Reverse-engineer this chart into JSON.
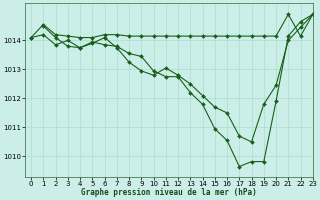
{
  "title": "Graphe pression niveau de la mer (hPa)",
  "background_color": "#cceee8",
  "grid_color": "#aaddcc",
  "line_color": "#1a5e1a",
  "xlim": [
    -0.5,
    23
  ],
  "ylim": [
    1009.3,
    1015.3
  ],
  "yticks": [
    1010,
    1011,
    1012,
    1013,
    1014
  ],
  "xticks": [
    0,
    1,
    2,
    3,
    4,
    5,
    6,
    7,
    8,
    9,
    10,
    11,
    12,
    13,
    14,
    15,
    16,
    17,
    18,
    19,
    20,
    21,
    22,
    23
  ],
  "series": [
    {
      "x": [
        0,
        1,
        2,
        3,
        4,
        5,
        6,
        7,
        8,
        9,
        10,
        11,
        12,
        13,
        14,
        15,
        16,
        17,
        18,
        19,
        20,
        21,
        22,
        23
      ],
      "y": [
        1014.1,
        1014.55,
        1014.2,
        1014.15,
        1014.1,
        1014.1,
        1014.2,
        1014.2,
        1014.15,
        1014.15,
        1014.15,
        1014.15,
        1014.15,
        1014.15,
        1014.15,
        1014.15,
        1014.15,
        1014.15,
        1014.15,
        1014.15,
        1014.15,
        1014.9,
        1014.15,
        1014.9
      ]
    },
    {
      "x": [
        0,
        1,
        2,
        3,
        4,
        5,
        6,
        7,
        8,
        9,
        10,
        11,
        12,
        13,
        14,
        15,
        16,
        17,
        18,
        19,
        20,
        21,
        22,
        23
      ],
      "y": [
        1014.1,
        1014.2,
        1013.85,
        1014.0,
        1013.75,
        1013.9,
        1014.1,
        1013.75,
        1013.25,
        1012.95,
        1012.8,
        1013.05,
        1012.8,
        1012.5,
        1012.1,
        1011.7,
        1011.5,
        1010.7,
        1010.5,
        1011.8,
        1012.45,
        1014.0,
        1014.45,
        1014.9
      ]
    },
    {
      "x": [
        1,
        2,
        3,
        4,
        5,
        6,
        7,
        8,
        9,
        10,
        11,
        12,
        13,
        14,
        15,
        16,
        17,
        18,
        19,
        20,
        21,
        22,
        23
      ],
      "y": [
        1014.5,
        1014.1,
        1013.8,
        1013.75,
        1013.95,
        1013.85,
        1013.8,
        1013.55,
        1013.45,
        1012.95,
        1012.75,
        1012.75,
        1012.2,
        1011.8,
        1010.95,
        1010.55,
        1009.65,
        1009.82,
        1009.82,
        1011.9,
        1014.15,
        1014.65,
        1014.9
      ]
    }
  ]
}
